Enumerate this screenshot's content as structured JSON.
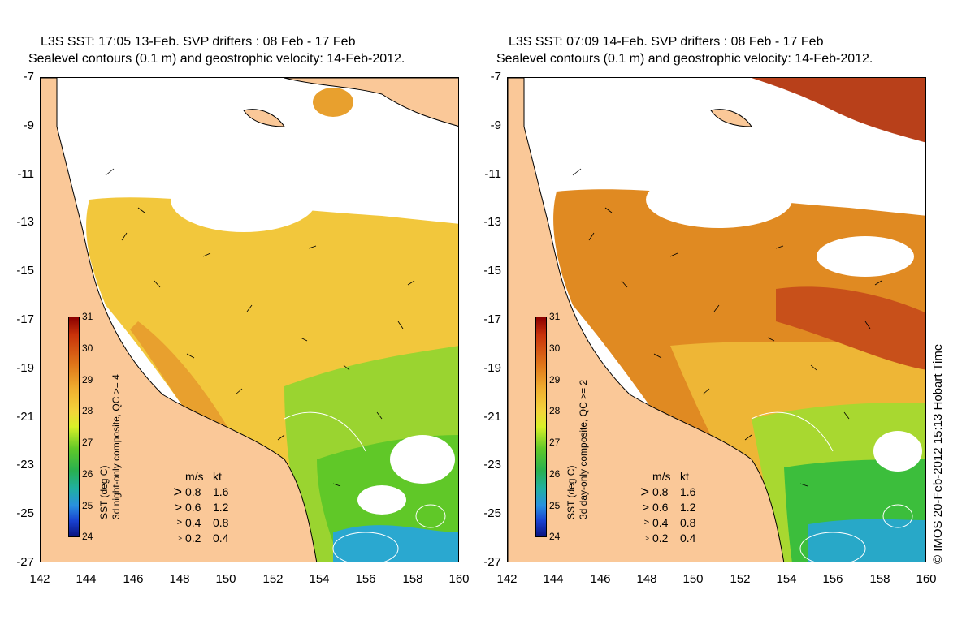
{
  "panels": [
    {
      "title_line1": "L3S SST: 17:05 13-Feb. SVP drifters : 08 Feb - 17 Feb",
      "title_line2": "Sealevel contours (0.1 m) and geostrophic velocity: 14-Feb-2012.",
      "colorbar_label": "SST (deg C)",
      "colorbar_sublabel": "3d night-only composite, QC >= 4"
    },
    {
      "title_line1": "L3S SST: 07:09 14-Feb. SVP drifters : 08 Feb - 17 Feb",
      "title_line2": "Sealevel contours (0.1 m) and geostrophic velocity: 14-Feb-2012.",
      "colorbar_label": "SST (deg C)",
      "colorbar_sublabel": "3d day-only composite, QC >= 2"
    }
  ],
  "axes": {
    "y_ticks": [
      "-7",
      "-9",
      "-11",
      "-13",
      "-15",
      "-17",
      "-19",
      "-21",
      "-23",
      "-25",
      "-27"
    ],
    "x_ticks": [
      "142",
      "144",
      "146",
      "148",
      "150",
      "152",
      "154",
      "156",
      "158",
      "160"
    ]
  },
  "colorbar_ticks": [
    "31",
    "30",
    "29",
    "28",
    "27",
    "26",
    "25",
    "24"
  ],
  "legend": {
    "header_ms": "m/s",
    "header_kt": "kt",
    "rows": [
      {
        "ms": "0.8",
        "kt": "1.6"
      },
      {
        "ms": "0.6",
        "kt": "1.2"
      },
      {
        "ms": "0.4",
        "kt": "0.8"
      },
      {
        "ms": "0.2",
        "kt": "0.4"
      }
    ]
  },
  "credit": "© IMOS 20-Feb-2012 15:13 Hobart Time",
  "colors": {
    "land": "#fac898",
    "coast": "#000000",
    "warm": "#e89a2a",
    "mid": "#f2c73c",
    "cool": "#60c828",
    "cold": "#28a0c8"
  }
}
